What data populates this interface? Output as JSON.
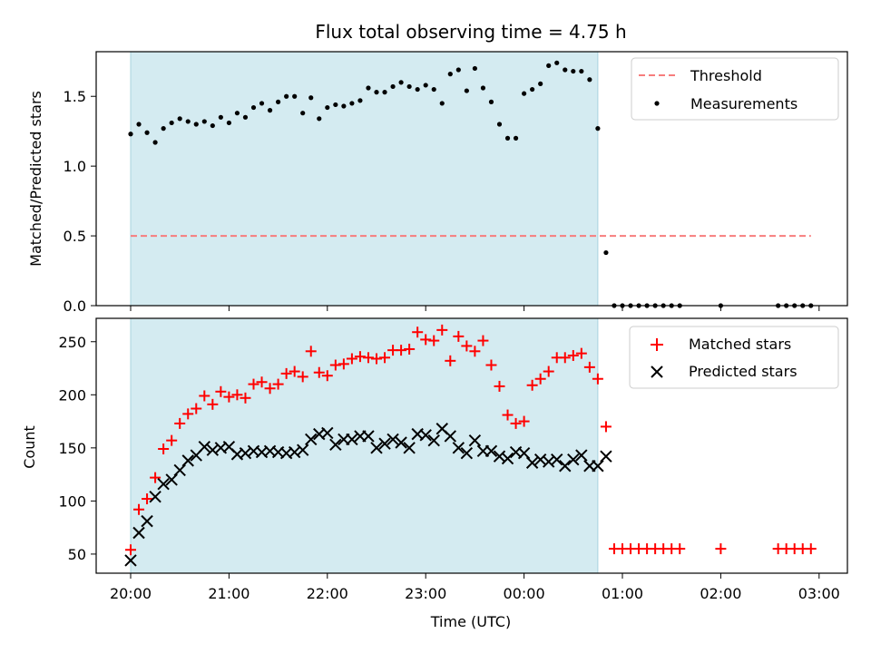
{
  "chart_data": [
    {
      "type": "scatter",
      "title": "Flux total observing time = 4.75 h",
      "xlabel": "",
      "ylabel": "Matched/Predicted stars",
      "ylim": [
        0,
        1.82
      ],
      "yticks": [
        "0.0",
        "0.5",
        "1.0",
        "1.5"
      ],
      "legend_position": "top-right",
      "shaded_interval": [
        "20:00",
        "00:45"
      ],
      "shade_color": "#d4ebf1",
      "threshold": {
        "name": "Threshold",
        "value": 0.5,
        "x_start": "20:00",
        "x_end": "02:55",
        "color": "#f77d7d"
      },
      "series": [
        {
          "name": "Measurements",
          "marker": "dot",
          "color": "#000000",
          "x": [
            "20:00",
            "20:05",
            "20:10",
            "20:15",
            "20:20",
            "20:25",
            "20:30",
            "20:35",
            "20:40",
            "20:45",
            "20:50",
            "20:55",
            "21:00",
            "21:05",
            "21:10",
            "21:15",
            "21:20",
            "21:25",
            "21:30",
            "21:35",
            "21:40",
            "21:45",
            "21:50",
            "21:55",
            "22:00",
            "22:05",
            "22:10",
            "22:15",
            "22:20",
            "22:25",
            "22:30",
            "22:35",
            "22:40",
            "22:45",
            "22:50",
            "22:55",
            "23:00",
            "23:05",
            "23:10",
            "23:15",
            "23:20",
            "23:25",
            "23:30",
            "23:35",
            "23:40",
            "23:45",
            "23:50",
            "23:55",
            "00:00",
            "00:05",
            "00:10",
            "00:15",
            "00:20",
            "00:25",
            "00:30",
            "00:35",
            "00:40",
            "00:45",
            "00:50",
            "00:55",
            "01:00",
            "01:05",
            "01:10",
            "01:15",
            "01:20",
            "01:25",
            "01:30",
            "01:35",
            "02:00",
            "02:35",
            "02:40",
            "02:45",
            "02:50",
            "02:55"
          ],
          "y": [
            1.23,
            1.3,
            1.24,
            1.17,
            1.27,
            1.31,
            1.34,
            1.32,
            1.3,
            1.32,
            1.29,
            1.35,
            1.31,
            1.38,
            1.35,
            1.42,
            1.45,
            1.4,
            1.46,
            1.5,
            1.5,
            1.38,
            1.49,
            1.34,
            1.42,
            1.44,
            1.43,
            1.45,
            1.47,
            1.56,
            1.53,
            1.53,
            1.57,
            1.6,
            1.57,
            1.55,
            1.58,
            1.55,
            1.45,
            1.66,
            1.69,
            1.54,
            1.7,
            1.56,
            1.46,
            1.3,
            1.2,
            1.2,
            1.52,
            1.55,
            1.59,
            1.72,
            1.74,
            1.69,
            1.68,
            1.68,
            1.62,
            1.27,
            0.38,
            0,
            0,
            0,
            0,
            0,
            0,
            0,
            0,
            0,
            0,
            0,
            0,
            0,
            0,
            0
          ]
        }
      ]
    },
    {
      "type": "scatter",
      "title": "",
      "xlabel": "Time (UTC)",
      "ylabel": "Count",
      "ylim": [
        32,
        272
      ],
      "yticks": [
        "50",
        "100",
        "150",
        "200",
        "250"
      ],
      "xticks": [
        "20:00",
        "21:00",
        "22:00",
        "23:00",
        "00:00",
        "01:00",
        "02:00",
        "03:00"
      ],
      "legend_position": "top-right",
      "series": [
        {
          "name": "Matched stars",
          "marker": "plus",
          "color": "#ff0000",
          "x": [
            "20:00",
            "20:05",
            "20:10",
            "20:15",
            "20:20",
            "20:25",
            "20:30",
            "20:35",
            "20:40",
            "20:45",
            "20:50",
            "20:55",
            "21:00",
            "21:05",
            "21:10",
            "21:15",
            "21:20",
            "21:25",
            "21:30",
            "21:35",
            "21:40",
            "21:45",
            "21:50",
            "21:55",
            "22:00",
            "22:05",
            "22:10",
            "22:15",
            "22:20",
            "22:25",
            "22:30",
            "22:35",
            "22:40",
            "22:45",
            "22:50",
            "22:55",
            "23:00",
            "23:05",
            "23:10",
            "23:15",
            "23:20",
            "23:25",
            "23:30",
            "23:35",
            "23:40",
            "23:45",
            "23:50",
            "23:55",
            "00:00",
            "00:05",
            "00:10",
            "00:15",
            "00:20",
            "00:25",
            "00:30",
            "00:35",
            "00:40",
            "00:45",
            "00:50",
            "00:55",
            "01:00",
            "01:05",
            "01:10",
            "01:15",
            "01:20",
            "01:25",
            "01:30",
            "01:35",
            "02:00",
            "02:35",
            "02:40",
            "02:45",
            "02:50",
            "02:55"
          ],
          "y": [
            54,
            92,
            102,
            122,
            149,
            157,
            173,
            182,
            187,
            199,
            191,
            203,
            198,
            200,
            197,
            210,
            212,
            206,
            210,
            220,
            222,
            217,
            241,
            221,
            218,
            228,
            229,
            234,
            236,
            235,
            234,
            235,
            242,
            242,
            243,
            259,
            252,
            251,
            261,
            232,
            255,
            246,
            241,
            251,
            228,
            208,
            181,
            173,
            175,
            209,
            215,
            222,
            235,
            235,
            237,
            239,
            226,
            215,
            170,
            55,
            55,
            55,
            55,
            55,
            55,
            55,
            55,
            55,
            55,
            55,
            55,
            55,
            55,
            55
          ]
        },
        {
          "name": "Predicted stars",
          "marker": "x",
          "color": "#000000",
          "x": [
            "20:00",
            "20:05",
            "20:10",
            "20:15",
            "20:20",
            "20:25",
            "20:30",
            "20:35",
            "20:40",
            "20:45",
            "20:50",
            "20:55",
            "21:00",
            "21:05",
            "21:10",
            "21:15",
            "21:20",
            "21:25",
            "21:30",
            "21:35",
            "21:40",
            "21:45",
            "21:50",
            "21:55",
            "22:00",
            "22:05",
            "22:10",
            "22:15",
            "22:20",
            "22:25",
            "22:30",
            "22:35",
            "22:40",
            "22:45",
            "22:50",
            "22:55",
            "23:00",
            "23:05",
            "23:10",
            "23:15",
            "23:20",
            "23:25",
            "23:30",
            "23:35",
            "23:40",
            "23:45",
            "23:50",
            "23:55",
            "00:00",
            "00:05",
            "00:10",
            "00:15",
            "00:20",
            "00:25",
            "00:30",
            "00:35",
            "00:40",
            "00:45",
            "00:50"
          ],
          "y": [
            44,
            70,
            81,
            104,
            116,
            120,
            129,
            138,
            143,
            151,
            148,
            150,
            151,
            144,
            145,
            147,
            146,
            147,
            146,
            145,
            146,
            148,
            158,
            163,
            164,
            153,
            158,
            158,
            161,
            161,
            150,
            154,
            158,
            155,
            150,
            163,
            162,
            157,
            168,
            161,
            150,
            145,
            157,
            147,
            147,
            142,
            140,
            146,
            145,
            136,
            139,
            137,
            139,
            133,
            139,
            143,
            133,
            133,
            142
          ]
        }
      ]
    }
  ]
}
